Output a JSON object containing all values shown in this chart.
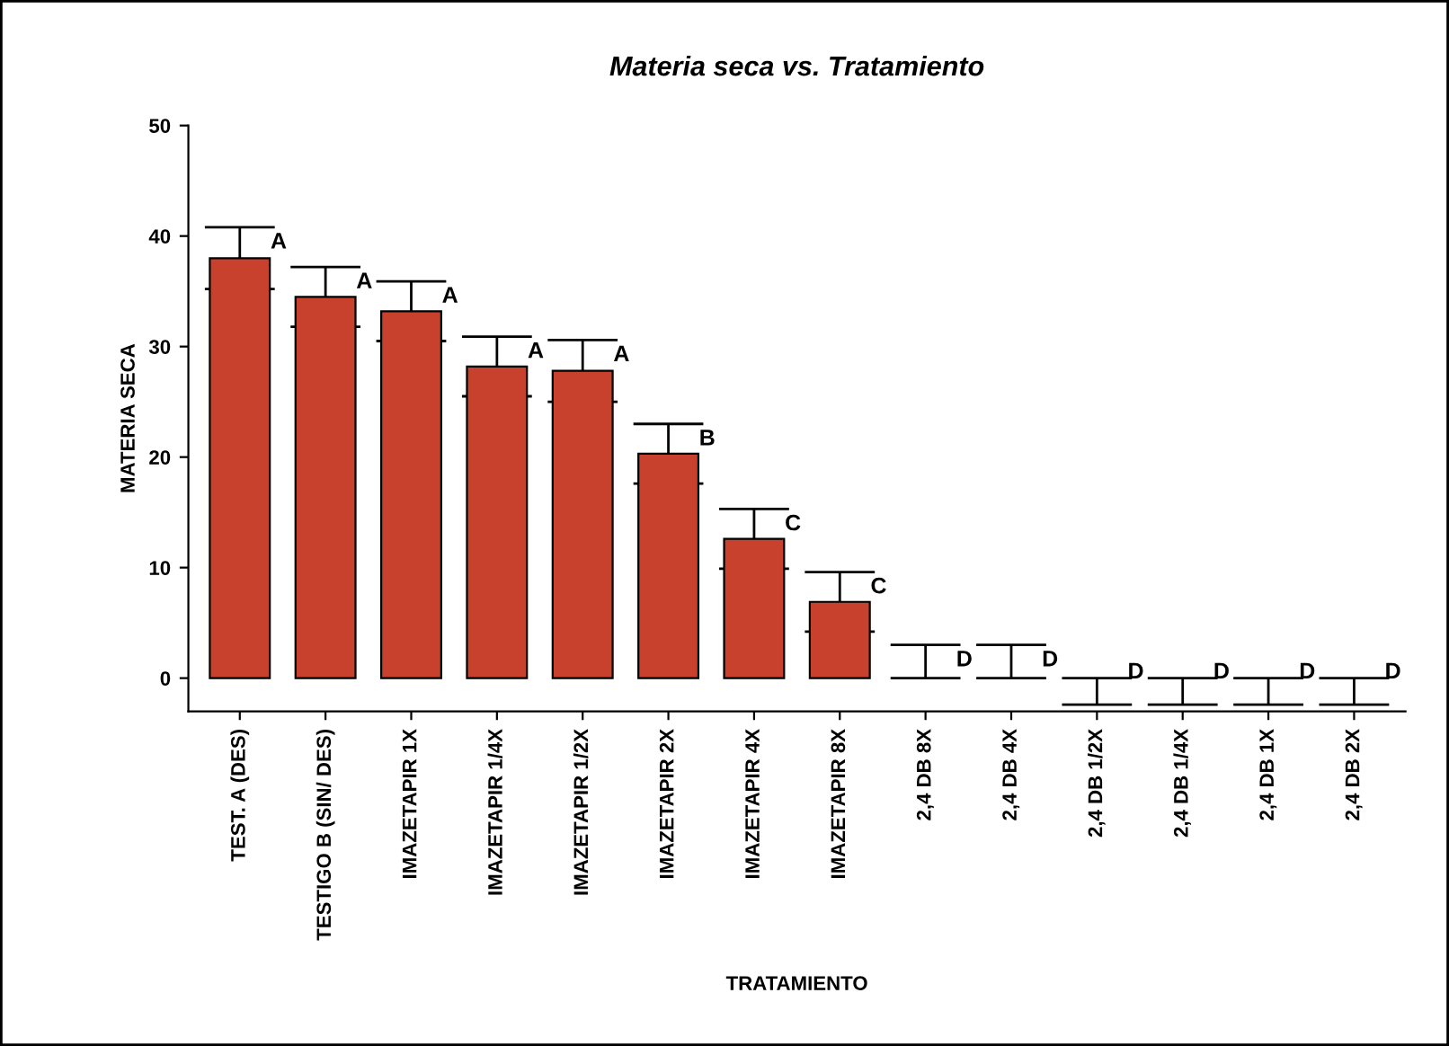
{
  "chart_data": {
    "type": "bar",
    "title": "Materia seca vs. Tratamiento",
    "xlabel": "TRATAMIENTO",
    "ylabel": "MATERIA SECA",
    "categories": [
      "TEST. A (DES)",
      "TESTIGO B (SIN/ DES)",
      "IMAZETAPIR 1X",
      "IMAZETAPIR 1/4X",
      "IMAZETAPIR 1/2X",
      "IMAZETAPIR 2X",
      "IMAZETAPIR 4X",
      "IMAZETAPIR 8X",
      "2,4 DB 8X",
      "2,4 DB 4X",
      "2,4 DB 1/2X",
      "2,4 DB 1/4X",
      "2,4 DB 1X",
      "2,4 DB 2X"
    ],
    "values": [
      38,
      34.5,
      33.2,
      28.2,
      27.8,
      20.3,
      12.6,
      6.9,
      0,
      0,
      0,
      0,
      0,
      0
    ],
    "errors": [
      2.8,
      2.7,
      2.7,
      2.7,
      2.8,
      2.7,
      2.7,
      2.7,
      [
        0,
        3
      ],
      [
        0,
        3
      ],
      [
        -2.4,
        0
      ],
      [
        -2.4,
        0
      ],
      [
        -2.4,
        0
      ],
      [
        -2.4,
        0
      ]
    ],
    "color": "#c8412c",
    "ylim": [
      -3,
      50
    ],
    "yticks": [
      0,
      10,
      20,
      30,
      40,
      50
    ],
    "grid": false,
    "legend": false,
    "annotations": [
      {
        "text": "A",
        "x": "TEST. A (DES)",
        "y": 40.8
      },
      {
        "text": "A",
        "x": "TESTIGO B (SIN/ DES)",
        "y": 37.2
      },
      {
        "text": "A",
        "x": "IMAZETAPIR 1X",
        "y": 35.9
      },
      {
        "text": "A",
        "x": "IMAZETAPIR 1/4X",
        "y": 30.9
      },
      {
        "text": "A",
        "x": "IMAZETAPIR 1/2X",
        "y": 30.6
      },
      {
        "text": "B",
        "x": "IMAZETAPIR 2X",
        "y": 23
      },
      {
        "text": "C",
        "x": "IMAZETAPIR 4X",
        "y": 15.3
      },
      {
        "text": "C",
        "x": "IMAZETAPIR 8X",
        "y": 9.6
      },
      {
        "text": "D",
        "x": "2,4 DB 8X",
        "y": 3
      },
      {
        "text": "D",
        "x": "2,4 DB 4X",
        "y": 3
      },
      {
        "text": "D",
        "x": "2,4 DB 1/2X",
        "y": 0
      },
      {
        "text": "D",
        "x": "2,4 DB 1/4X",
        "y": 0
      },
      {
        "text": "D",
        "x": "2,4 DB 1X",
        "y": 0
      },
      {
        "text": "D",
        "x": "2,4 DB 2X",
        "y": 0
      }
    ]
  }
}
